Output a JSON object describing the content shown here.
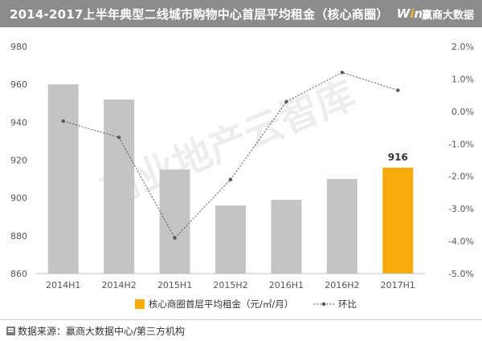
{
  "header": {
    "title": "2014-2017上半年典型二线城市购物中心首层平均租金（核心商圈）",
    "brand_name": "赢商大数据"
  },
  "footer": {
    "source": "数据来源：赢商大数据中心/第三方机构"
  },
  "watermark": "商业地产云智库",
  "colors": {
    "bar_default": "#c4c4c4",
    "bar_highlight": "#f7ab0a",
    "line": "#555555",
    "header_bg": "#8c8c8c"
  },
  "chart_data": {
    "type": "bar",
    "categories": [
      "2014H1",
      "2014H2",
      "2015H1",
      "2015H2",
      "2016H1",
      "2016H2",
      "2017H1"
    ],
    "series": [
      {
        "name": "核心商圈首层平均租金（元/㎡/月）",
        "type": "bar",
        "axis": "left",
        "values": [
          960,
          952,
          915,
          896,
          899,
          910,
          916
        ]
      },
      {
        "name": "环比",
        "type": "line",
        "axis": "right",
        "values": [
          -0.3,
          -0.8,
          -3.9,
          -2.1,
          0.3,
          1.2,
          0.65
        ]
      }
    ],
    "data_labels": [
      {
        "category": "2017H1",
        "text": "916"
      }
    ],
    "ylim_left": [
      860,
      980
    ],
    "yticks_left": [
      "860",
      "880",
      "900",
      "920",
      "940",
      "960",
      "980"
    ],
    "ylim_right": [
      -5.0,
      2.0
    ],
    "yticks_right": [
      "-5.0%",
      "-4.0%",
      "-3.0%",
      "-2.0%",
      "-1.0%",
      "0.0%",
      "1.0%",
      "2.0%"
    ],
    "highlight_category": "2017H1",
    "legend_position": "bottom",
    "grid": false
  }
}
